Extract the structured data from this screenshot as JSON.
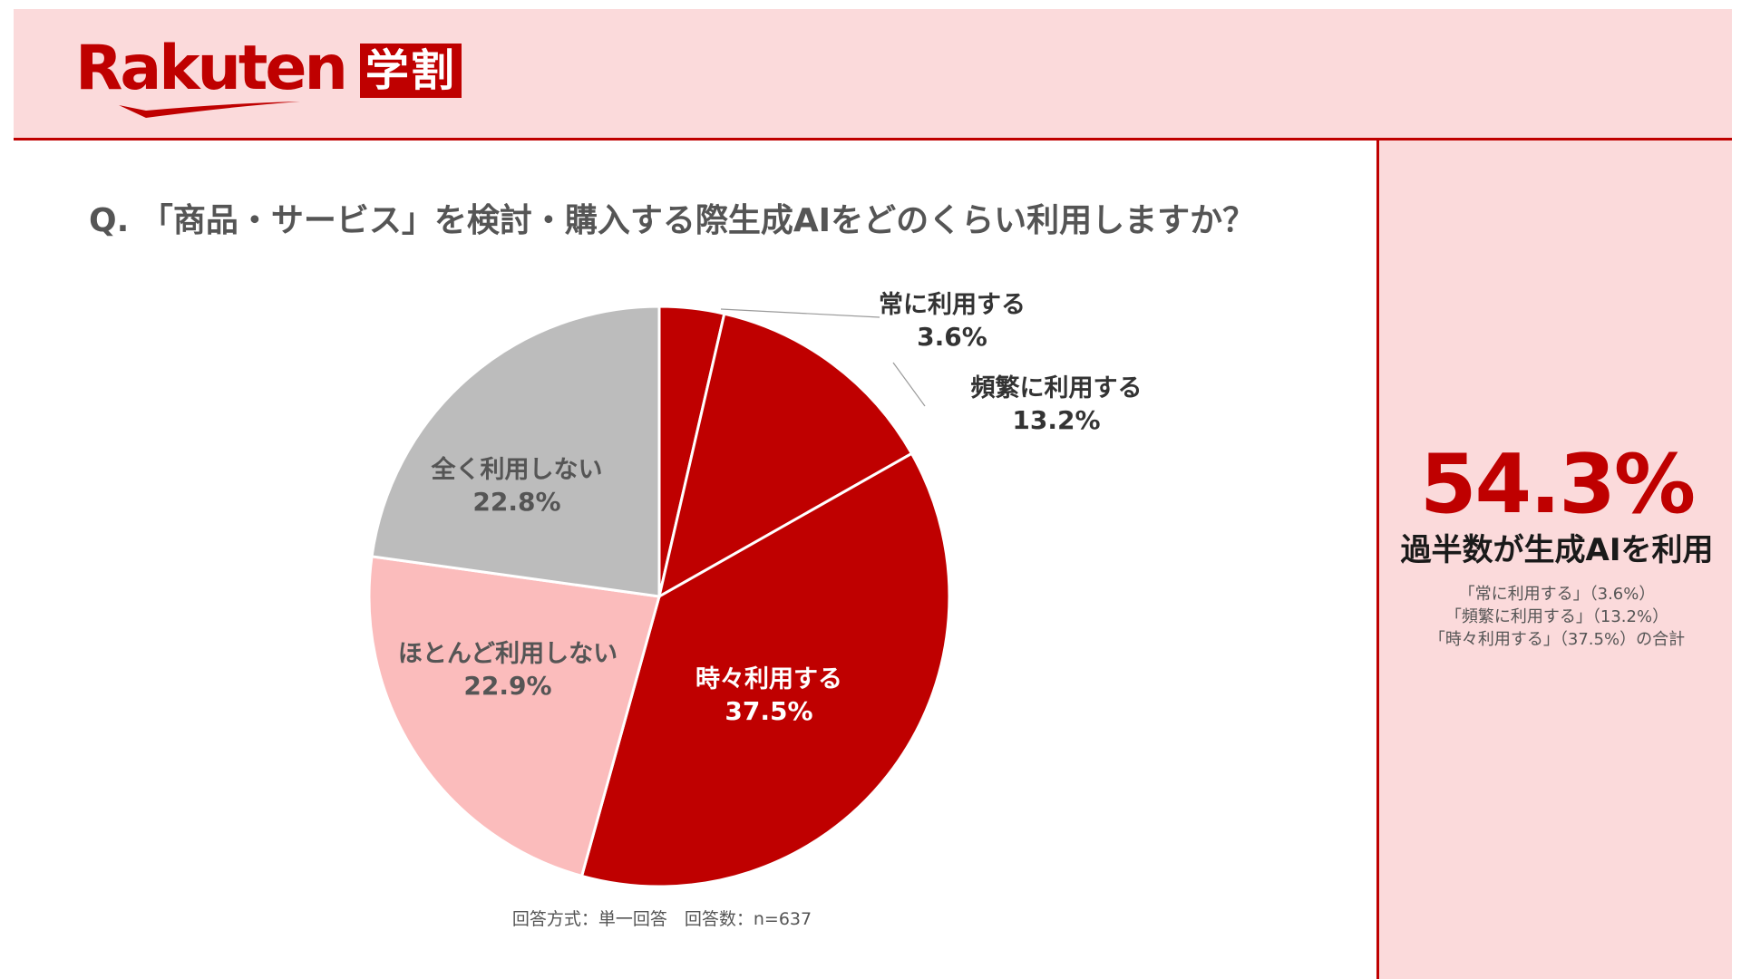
{
  "brand": {
    "logo_text": "Rakuten",
    "badge_text": "学割"
  },
  "colors": {
    "accent": "#bf0000",
    "header_bg": "#fbdadb",
    "slice_dark_red": "#bf0000",
    "slice_light_pink": "#fbbcbc",
    "slice_gray": "#bcbcbc"
  },
  "question": "Q. 「商品・サービス」を検討・購入する際生成AIをどのくらい利用しますか？",
  "chart_data": {
    "type": "pie",
    "start_angle": "12 o'clock",
    "direction": "clockwise",
    "slices": [
      {
        "label": "常に利用する",
        "value": 3.6,
        "display": "3.6%",
        "color": "#bf0000"
      },
      {
        "label": "頻繁に利用する",
        "value": 13.2,
        "display": "13.2%",
        "color": "#bf0000"
      },
      {
        "label": "時々利用する",
        "value": 37.5,
        "display": "37.5%",
        "color": "#bf0000"
      },
      {
        "label": "ほとんど利用しない",
        "value": 22.9,
        "display": "22.9%",
        "color": "#fbbcbc"
      },
      {
        "label": "全く利用しない",
        "value": 22.8,
        "display": "22.8%",
        "color": "#bcbcbc"
      }
    ]
  },
  "footnote": "回答方式：単一回答　回答数：n=637",
  "summary": {
    "value": "54.3%",
    "caption": "過半数が生成AIを利用",
    "notes": [
      "「常に利用する」（3.6%）",
      "「頻繁に利用する」（13.2%）",
      "「時々利用する」（37.5%）の合計"
    ]
  }
}
